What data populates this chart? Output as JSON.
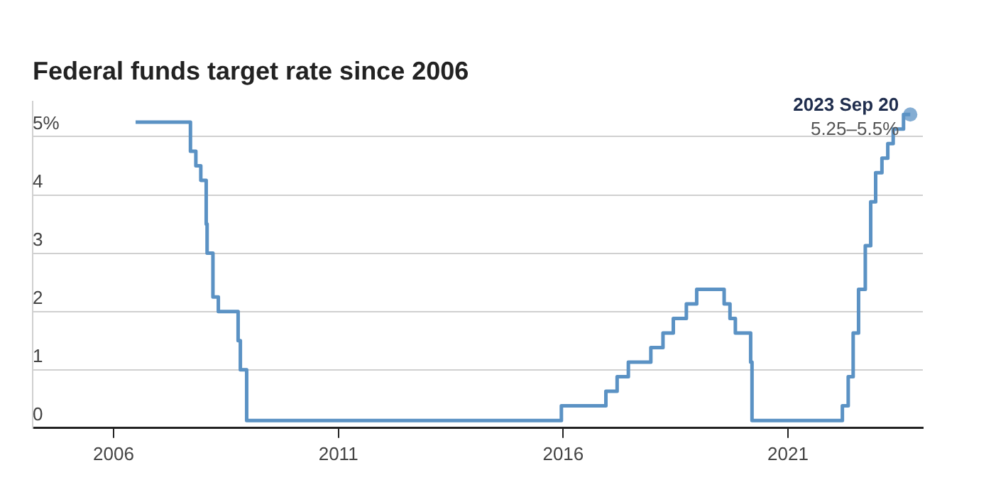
{
  "chart_data": {
    "type": "step",
    "title": "Federal funds target rate since 2006",
    "x": [
      2006.49,
      2007.71,
      2007.83,
      2007.94,
      2008.06,
      2008.08,
      2008.21,
      2008.33,
      2008.77,
      2008.82,
      2008.96,
      2015.96,
      2016.95,
      2017.2,
      2017.45,
      2017.95,
      2018.22,
      2018.45,
      2018.74,
      2018.97,
      2019.58,
      2019.71,
      2019.83,
      2020.17,
      2020.2,
      2022.21,
      2022.34,
      2022.45,
      2022.57,
      2022.72,
      2022.84,
      2022.95,
      2023.09,
      2023.22,
      2023.34,
      2023.57,
      2023.72
    ],
    "series": [
      {
        "color": "#5b92c4",
        "values": [
          5.25,
          4.75,
          4.5,
          4.25,
          3.5,
          3.0,
          2.25,
          2.0,
          1.5,
          1.0,
          0.13,
          0.38,
          0.63,
          0.88,
          1.13,
          1.38,
          1.63,
          1.88,
          2.13,
          2.38,
          2.13,
          1.88,
          1.63,
          1.13,
          0.13,
          0.38,
          0.88,
          1.63,
          2.38,
          3.13,
          3.88,
          4.38,
          4.63,
          4.88,
          5.13,
          5.38,
          5.38
        ]
      }
    ],
    "xlim": [
      2004.2,
      2024.0
    ],
    "xticks": [
      2006,
      2011,
      2016,
      2021
    ],
    "ylim": [
      0,
      5.6
    ],
    "yticks": [
      0,
      1,
      2,
      3,
      4,
      {
        "value": 5,
        "label": "5%"
      }
    ],
    "grid": "y",
    "legend": false,
    "marker": "none",
    "line_style": "solid",
    "annotations": [
      {
        "text": "2023 Sep 20",
        "x": 2023.72,
        "y": 5.38
      },
      {
        "text": "5.25–5.5%",
        "x": 2023.72,
        "y": 5.38
      }
    ]
  }
}
